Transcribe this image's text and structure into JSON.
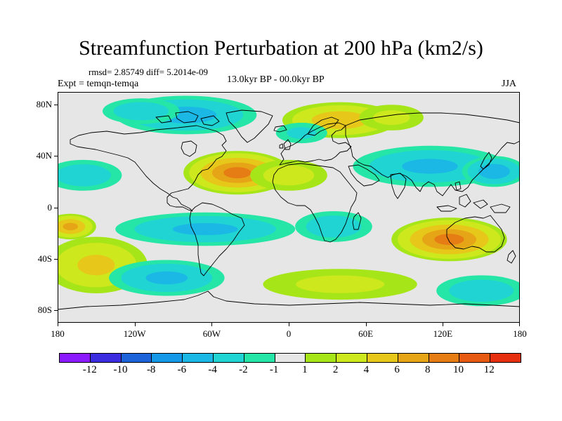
{
  "title": "Streamfunction Perturbation at 200 hPa (km2/s)",
  "stats": "rmsd= 2.85749 diff= 5.2014e-09",
  "experiment": "Expt = temqn-temqa",
  "period": "13.0kyr BP - 00.0kyr BP",
  "season": "JJA",
  "axes": {
    "lat_labels": [
      "80N",
      "40N",
      "0",
      "40S",
      "80S"
    ],
    "lat_values": [
      80,
      40,
      0,
      -40,
      -80
    ],
    "lon_labels": [
      "180",
      "120W",
      "60W",
      "0",
      "60E",
      "120E",
      "180"
    ],
    "lon_values": [
      -180,
      -120,
      -60,
      0,
      60,
      120,
      180
    ],
    "lon_range": [
      -180,
      180
    ],
    "lat_range": [
      -90,
      90
    ]
  },
  "colorbar": {
    "colors": [
      "#8c1aff",
      "#3b2ce0",
      "#1c62d9",
      "#1598e8",
      "#1bb8e5",
      "#20d4d4",
      "#25e6a6",
      "#e6e6e6",
      "#a6e619",
      "#cde81c",
      "#e6c71a",
      "#e6a516",
      "#e67d14",
      "#e65a11",
      "#e62f0e"
    ],
    "labels": [
      "-12",
      "-10",
      "-8",
      "-6",
      "-4",
      "-2",
      "-1",
      "1",
      "2",
      "4",
      "6",
      "8",
      "10",
      "12"
    ]
  },
  "field": {
    "levels_note_hidden": "",
    "background_color": "#e6e6e6",
    "features": [
      {
        "lon": -80,
        "lat": 72,
        "rlon": 55,
        "rlat": 15,
        "value": -4.5
      },
      {
        "lon": -115,
        "lat": 75,
        "rlon": 30,
        "rlat": 10,
        "value": -3
      },
      {
        "lon": 40,
        "lat": 68,
        "rlon": 45,
        "rlat": 14,
        "value": 5
      },
      {
        "lon": 80,
        "lat": 70,
        "rlon": 25,
        "rlat": 10,
        "value": 2
      },
      {
        "lon": -40,
        "lat": 27,
        "rlon": 42,
        "rlat": 17,
        "value": 8
      },
      {
        "lon": 0,
        "lat": 25,
        "rlon": 30,
        "rlat": 12,
        "value": 2.5
      },
      {
        "lon": 110,
        "lat": 32,
        "rlon": 60,
        "rlat": 16,
        "value": -4
      },
      {
        "lon": 160,
        "lat": 28,
        "rlon": 25,
        "rlat": 12,
        "value": -5
      },
      {
        "lon": -160,
        "lat": 25,
        "rlon": 30,
        "rlat": 12,
        "value": -3
      },
      {
        "lon": -65,
        "lat": -17,
        "rlon": 70,
        "rlat": 13,
        "value": -4
      },
      {
        "lon": 35,
        "lat": -15,
        "rlon": 30,
        "rlat": 12,
        "value": -3
      },
      {
        "lon": 125,
        "lat": -25,
        "rlon": 45,
        "rlat": 17,
        "value": 8
      },
      {
        "lon": -150,
        "lat": -45,
        "rlon": 40,
        "rlat": 22,
        "value": 4
      },
      {
        "lon": -170,
        "lat": -15,
        "rlon": 20,
        "rlat": 10,
        "value": 6
      },
      {
        "lon": -95,
        "lat": -55,
        "rlon": 45,
        "rlat": 14,
        "value": -4
      },
      {
        "lon": 40,
        "lat": -60,
        "rlon": 60,
        "rlat": 12,
        "value": 2
      },
      {
        "lon": 150,
        "lat": -65,
        "rlon": 35,
        "rlat": 12,
        "value": -3
      },
      {
        "lon": 10,
        "lat": 58,
        "rlon": 20,
        "rlat": 8,
        "value": -2
      }
    ]
  }
}
